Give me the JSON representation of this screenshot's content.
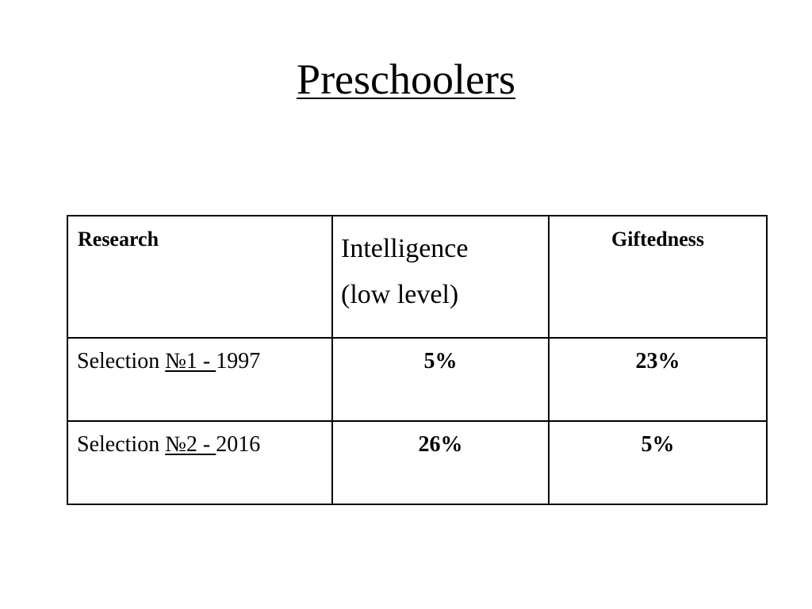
{
  "title": "Preschoolers",
  "table": {
    "headers": {
      "research": "Research",
      "intelligence_line1": "Intelligence",
      "intelligence_line2": "(low level)",
      "giftedness": "Giftedness"
    },
    "rows": [
      {
        "label_prefix": "Selection ",
        "label_number": "№1 - ",
        "label_year": "1997",
        "intelligence": "5%",
        "giftedness": "23%"
      },
      {
        "label_prefix": "Selection ",
        "label_number": "№2 - ",
        "label_year": "2016",
        "intelligence": "26%",
        "giftedness": "5%"
      }
    ]
  }
}
